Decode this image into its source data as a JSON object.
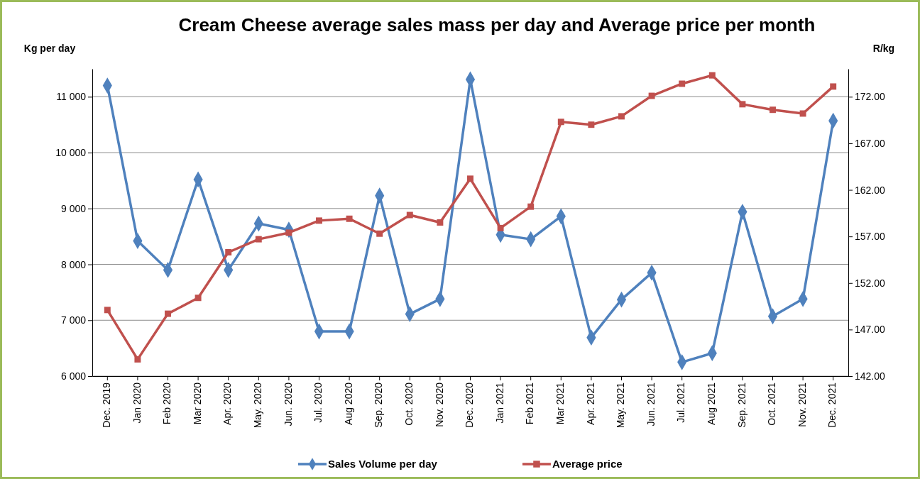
{
  "chart_data": {
    "type": "line",
    "title": "Cream Cheese average sales mass per day and Average price per month",
    "ylabel": "Kg per day",
    "y2label": "R/kg",
    "categories": [
      "Dec. 2019",
      "Jan 2020",
      "Feb 2020",
      "Mar 2020",
      "Apr. 2020",
      "May. 2020",
      "Jun. 2020",
      "Jul. 2020",
      "Aug 2020",
      "Sep. 2020",
      "Oct. 2020",
      "Nov. 2020",
      "Dec. 2020",
      "Jan 2021",
      "Feb 2021",
      "Mar 2021",
      "Apr. 2021",
      "May. 2021",
      "Jun. 2021",
      "Jul. 2021",
      "Aug 2021",
      "Sep. 2021",
      "Oct. 2021",
      "Nov. 2021",
      "Dec. 2021"
    ],
    "series": [
      {
        "name": "Sales Volume per day",
        "color": "#4f81bd",
        "marker": "diamond",
        "values": [
          11200,
          8420,
          7900,
          9520,
          7900,
          8730,
          8620,
          6800,
          6800,
          9230,
          7110,
          7380,
          11310,
          8530,
          8450,
          8860,
          6690,
          7370,
          7850,
          6250,
          6410,
          8940,
          7070,
          7380,
          10570
        ]
      },
      {
        "name": "Average price",
        "color": "#c0504d",
        "marker": "square",
        "axis": "y2",
        "values": [
          149.1,
          143.8,
          148.7,
          150.4,
          155.3,
          156.7,
          157.4,
          158.7,
          158.9,
          157.3,
          159.3,
          158.5,
          163.2,
          157.9,
          160.2,
          169.3,
          169.0,
          169.9,
          172.1,
          173.4,
          174.3,
          171.2,
          170.6,
          170.2,
          173.1
        ]
      }
    ],
    "ylim": [
      6000,
      11500
    ],
    "yticks": [
      {
        "value": 6000,
        "label": "6 000"
      },
      {
        "value": 7000,
        "label": "7 000"
      },
      {
        "value": 8000,
        "label": "8 000"
      },
      {
        "value": 9000,
        "label": "9 000"
      },
      {
        "value": 10000,
        "label": "10 000"
      },
      {
        "value": 11000,
        "label": "11 000"
      }
    ],
    "y2lim": [
      142,
      175
    ],
    "y2ticks": [
      {
        "value": 142,
        "label": "142.00"
      },
      {
        "value": 147,
        "label": "147.00"
      },
      {
        "value": 152,
        "label": "152.00"
      },
      {
        "value": 157,
        "label": "157.00"
      },
      {
        "value": 162,
        "label": "162.00"
      },
      {
        "value": 167,
        "label": "167.00"
      },
      {
        "value": 172,
        "label": "172.00"
      }
    ],
    "grid": "y",
    "legend": "bottom",
    "line_style": "solid"
  }
}
